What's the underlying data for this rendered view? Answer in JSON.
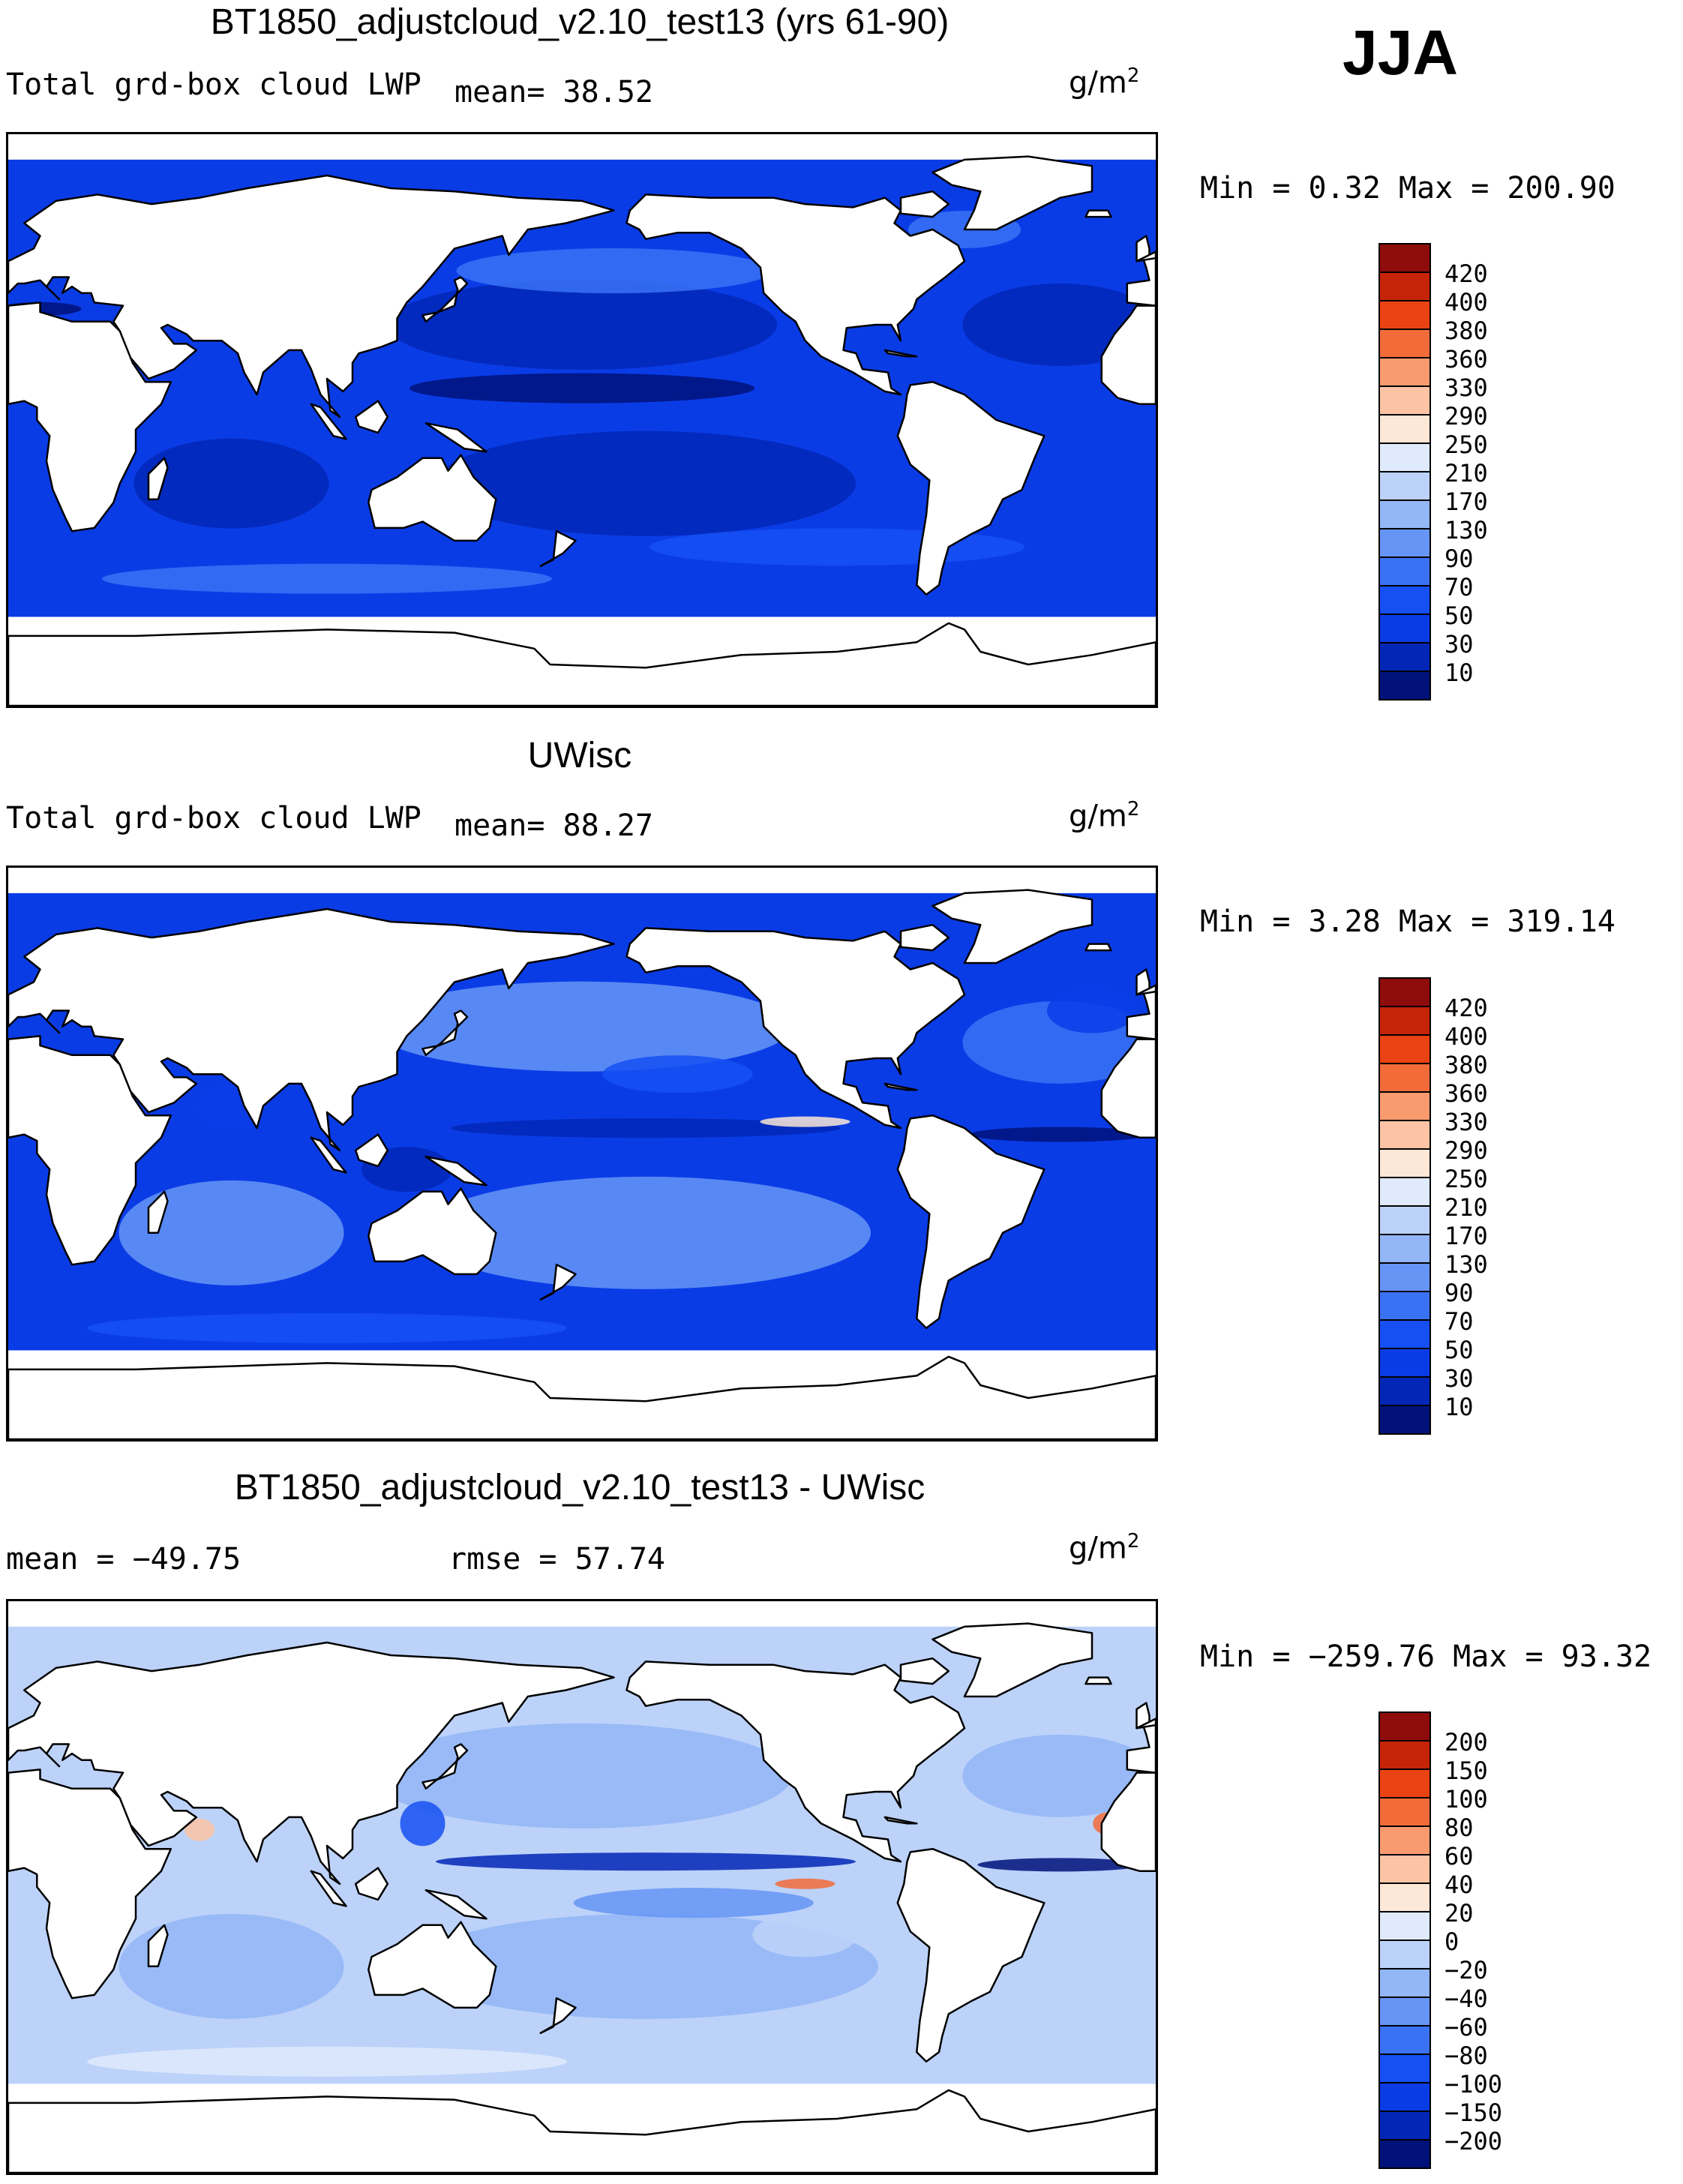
{
  "season": "JJA",
  "colors": {
    "seq": [
      "#00127a",
      "#0227b6",
      "#0a3ce6",
      "#1650f2",
      "#3a72f4",
      "#6695f5",
      "#93b6f7",
      "#bcd2f9",
      "#dfeafc",
      "#fde7d6",
      "#fcc4a5",
      "#f99b6e",
      "#f26c3a",
      "#ea4313",
      "#c62408",
      "#8e0c0c"
    ],
    "diff": [
      "#00127a",
      "#0227b6",
      "#0a3ce6",
      "#1650f2",
      "#3a72f4",
      "#6695f5",
      "#93b6f7",
      "#bcd2f9",
      "#dfeafc",
      "#fde7d6",
      "#fcc4a5",
      "#f99b6e",
      "#f26c3a",
      "#ea4313",
      "#c62408",
      "#8e0c0c"
    ]
  },
  "panels": [
    {
      "title": "BT1850_adjustcloud_v2.10_test13 (yrs 61-90)",
      "variable": "Total grd-box cloud LWP",
      "stat": "mean=  38.52",
      "stat2": "",
      "units": "g/m",
      "units_exp": "2",
      "minmax": "Min =   0.32 Max = 200.90",
      "colorbar": [
        "420",
        "400",
        "380",
        "360",
        "330",
        "290",
        "250",
        "210",
        "170",
        "130",
        "90",
        "70",
        "50",
        "30",
        "10"
      ],
      "palette": "seq",
      "style": "model"
    },
    {
      "title": "UWisc",
      "variable": "Total grd-box cloud LWP",
      "stat": "mean=  88.27",
      "stat2": "",
      "units": "g/m",
      "units_exp": "2",
      "minmax": "Min =   3.28 Max = 319.14",
      "colorbar": [
        "420",
        "400",
        "380",
        "360",
        "330",
        "290",
        "250",
        "210",
        "170",
        "130",
        "90",
        "70",
        "50",
        "30",
        "10"
      ],
      "palette": "seq",
      "style": "obs"
    },
    {
      "title": "BT1850_adjustcloud_v2.10_test13 - UWisc",
      "variable": "",
      "stat": "mean = −49.75",
      "stat2": "rmse =  57.74",
      "units": "g/m",
      "units_exp": "2",
      "minmax": "Min = −259.76 Max =  93.32",
      "colorbar": [
        "200",
        "150",
        "100",
        "80",
        "60",
        "40",
        "20",
        "0",
        "−20",
        "−40",
        "−60",
        "−80",
        "−100",
        "−150",
        "−200"
      ],
      "palette": "diff",
      "style": "diff"
    }
  ]
}
